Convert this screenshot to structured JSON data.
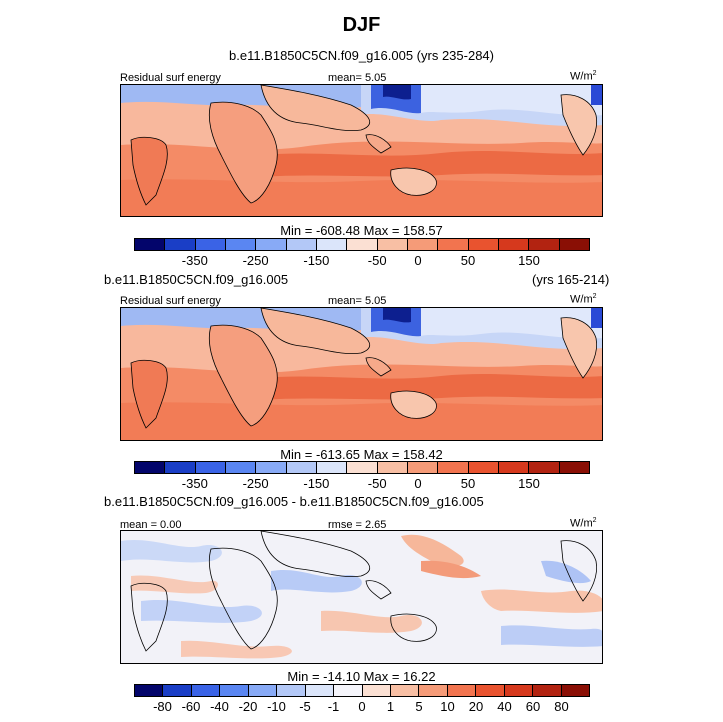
{
  "title": "DJF",
  "panel1": {
    "header": "b.e11.B1850C5CN.f09_g16.005 (yrs 235-284)",
    "left_label": "Residual surf energy",
    "center_label": "mean=   5.05",
    "units": "W/m",
    "units_sup": "2",
    "minmax": "Min = -608.48 Max = 158.57"
  },
  "panel2": {
    "header_left": "b.e11.B1850C5CN.f09_g16.005",
    "header_right": "(yrs 165-214)",
    "left_label": "Residual surf energy",
    "center_label": "mean=   5.05",
    "units": "W/m",
    "units_sup": "2",
    "minmax": "Min = -613.65 Max = 158.42"
  },
  "panel3": {
    "header": "b.e11.B1850C5CN.f09_g16.005 - b.e11.B1850C5CN.f09_g16.005",
    "left_label": "mean =   0.00",
    "center_label": "rmse =   2.65",
    "units": "W/m",
    "units_sup": "2",
    "minmax": "Min = -14.10 Max =  16.22"
  },
  "chart_data": [
    {
      "type": "heatmap",
      "title": "b.e11.B1850C5CN.f09_g16.005 (yrs 235-284)",
      "variable": "Residual surf energy",
      "units": "W/m2",
      "mean": 5.05,
      "min": -608.48,
      "max": 158.57,
      "colorbar_levels": [
        -350,
        -250,
        -150,
        -50,
        0,
        50,
        150
      ],
      "colorbar_colors": [
        "#03056b",
        "#1a3ec6",
        "#3a63e6",
        "#5a86f2",
        "#88aaf6",
        "#b3c8f7",
        "#dbe5fa",
        "#fbe0d3",
        "#f8bfa4",
        "#f59b78",
        "#f2744f",
        "#e9532f",
        "#d6391d",
        "#b22311",
        "#8a0f05"
      ]
    },
    {
      "type": "heatmap",
      "title": "b.e11.B1850C5CN.f09_g16.005 (yrs 165-214)",
      "variable": "Residual surf energy",
      "units": "W/m2",
      "mean": 5.05,
      "min": -613.65,
      "max": 158.42,
      "colorbar_levels": [
        -350,
        -250,
        -150,
        -50,
        0,
        50,
        150
      ],
      "colorbar_colors": [
        "#03056b",
        "#1a3ec6",
        "#3a63e6",
        "#5a86f2",
        "#88aaf6",
        "#b3c8f7",
        "#dbe5fa",
        "#fbe0d3",
        "#f8bfa4",
        "#f59b78",
        "#f2744f",
        "#e9532f",
        "#d6391d",
        "#b22311",
        "#8a0f05"
      ]
    },
    {
      "type": "heatmap",
      "title": "b.e11.B1850C5CN.f09_g16.005 - b.e11.B1850C5CN.f09_g16.005",
      "units": "W/m2",
      "mean": 0.0,
      "rmse": 2.65,
      "min": -14.1,
      "max": 16.22,
      "colorbar_levels": [
        -80,
        -60,
        -40,
        -20,
        -10,
        -5,
        -1,
        0,
        1,
        5,
        10,
        20,
        40,
        60,
        80
      ],
      "colorbar_colors": [
        "#03056b",
        "#1a3ec6",
        "#3a63e6",
        "#5a86f2",
        "#88aaf6",
        "#b3c8f7",
        "#dbe5fa",
        "#f5f5fb",
        "#fbe0d3",
        "#f8bfa4",
        "#f59b78",
        "#f2744f",
        "#e9532f",
        "#d6391d",
        "#b22311",
        "#8a0f05"
      ]
    }
  ]
}
